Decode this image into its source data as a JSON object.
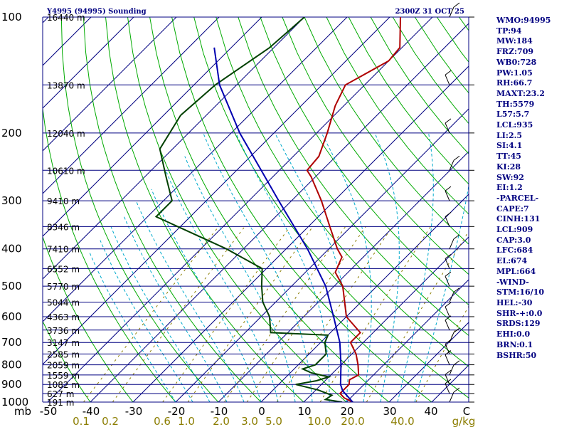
{
  "title_left": "Y4995 (94995) Sounding",
  "title_right": "2300Z 31 OCT 25",
  "pressure_labels": [
    "100",
    "200",
    "300",
    "400",
    "500",
    "600",
    "700",
    "800",
    "900",
    "1000"
  ],
  "temp_axis_labels": [
    "mb",
    "-50",
    "-40",
    "-30",
    "-20",
    "-10",
    "0",
    "10",
    "20",
    "30",
    "40",
    "C"
  ],
  "mixing_ratio_labels": [
    "0.1",
    "0.2",
    "0.6",
    "1.0",
    "2.0",
    "3.0",
    "5.0",
    "10.0",
    "20.0",
    "40.0",
    "g/kg"
  ],
  "height_labels": [
    {
      "p": 100,
      "text": "16440 m"
    },
    {
      "p": 150,
      "text": "13870 m"
    },
    {
      "p": 200,
      "text": "12040 m"
    },
    {
      "p": 250,
      "text": "10610 m"
    },
    {
      "p": 300,
      "text": "9410 m"
    },
    {
      "p": 350,
      "text": "8346 m"
    },
    {
      "p": 400,
      "text": "7410 m"
    },
    {
      "p": 450,
      "text": "6552 m"
    },
    {
      "p": 500,
      "text": "5770 m"
    },
    {
      "p": 550,
      "text": "5044 m"
    },
    {
      "p": 600,
      "text": "4363 m"
    },
    {
      "p": 650,
      "text": "3736 m"
    },
    {
      "p": 700,
      "text": "3147 m"
    },
    {
      "p": 750,
      "text": "2585 m"
    },
    {
      "p": 800,
      "text": "2059 m"
    },
    {
      "p": 850,
      "text": "1559 m"
    },
    {
      "p": 900,
      "text": "1082 m"
    },
    {
      "p": 950,
      "text": "627 m"
    },
    {
      "p": 1000,
      "text": "191 m"
    }
  ],
  "indices": [
    "WMO:94995",
    "TP:94",
    "MW:184",
    "FRZ:709",
    "WB0:728",
    "PW:1.05",
    "RH:66.7",
    "MAXT:23.2",
    "TH:5579",
    "L57:5.7",
    "LCL:935",
    "LI:2.5",
    "SI:4.1",
    "TT:45",
    "KI:28",
    "SW:92",
    "EI:1.2",
    "-PARCEL-",
    "CAPE:7",
    "CINH:131",
    "LCL:909",
    "CAP:3.0",
    "LFC:684",
    "EL:674",
    "MPL:664",
    "-WIND-",
    "STM:16/10",
    "HEL:-30",
    "SHR-+:0.0",
    "SRDS:129",
    "EHI:0.0",
    "BRN:0.1",
    "BSHR:50"
  ],
  "colors": {
    "temperature": "#b00000",
    "dewpoint": "#004000",
    "parcel": "#0000b0",
    "isobar": "#000080",
    "isotherm": "#000080",
    "dry_adiabat": "#00aa00",
    "moist_adiabat": "#00aacc",
    "mixing_ratio": "#8b7d00"
  },
  "chart_data": {
    "type": "line",
    "x_axis": "temperature",
    "x_units": "C",
    "y_axis": "pressure",
    "y_units": "mb",
    "y_scale": "log",
    "ylim": [
      1000,
      100
    ],
    "xlim": [
      -50,
      50
    ],
    "skew": true,
    "series": [
      {
        "key": "temperature",
        "points": [
          {
            "p": 1000,
            "t": 21.5
          },
          {
            "p": 975,
            "t": 18.5
          },
          {
            "p": 950,
            "t": 16.5
          },
          {
            "p": 925,
            "t": 16.5
          },
          {
            "p": 900,
            "t": 16.5
          },
          {
            "p": 875,
            "t": 15.5
          },
          {
            "p": 850,
            "t": 16.5
          },
          {
            "p": 800,
            "t": 14.0
          },
          {
            "p": 750,
            "t": 11.0
          },
          {
            "p": 700,
            "t": 7.0
          },
          {
            "p": 660,
            "t": 7.0
          },
          {
            "p": 600,
            "t": 0.0
          },
          {
            "p": 500,
            "t": -8.0
          },
          {
            "p": 460,
            "t": -13.0
          },
          {
            "p": 420,
            "t": -15.0
          },
          {
            "p": 400,
            "t": -18.0
          },
          {
            "p": 350,
            "t": -25.0
          },
          {
            "p": 300,
            "t": -33.0
          },
          {
            "p": 260,
            "t": -41.0
          },
          {
            "p": 250,
            "t": -43.5
          },
          {
            "p": 230,
            "t": -44.0
          },
          {
            "p": 200,
            "t": -47.5
          },
          {
            "p": 170,
            "t": -52.0
          },
          {
            "p": 150,
            "t": -54.5
          },
          {
            "p": 130,
            "t": -50.0
          },
          {
            "p": 120,
            "t": -50.5
          },
          {
            "p": 100,
            "t": -57.5
          }
        ]
      },
      {
        "key": "dewpoint",
        "points": [
          {
            "p": 1000,
            "t": 19.0
          },
          {
            "p": 985,
            "t": 14.5
          },
          {
            "p": 960,
            "t": 15.0
          },
          {
            "p": 930,
            "t": 10.5
          },
          {
            "p": 900,
            "t": 4.0
          },
          {
            "p": 880,
            "t": 8.0
          },
          {
            "p": 860,
            "t": 10.0
          },
          {
            "p": 840,
            "t": 5.0
          },
          {
            "p": 820,
            "t": 2.0
          },
          {
            "p": 800,
            "t": 4.0
          },
          {
            "p": 750,
            "t": 4.0
          },
          {
            "p": 700,
            "t": 1.0
          },
          {
            "p": 670,
            "t": 0.0
          },
          {
            "p": 660,
            "t": -14.0
          },
          {
            "p": 600,
            "t": -18.0
          },
          {
            "p": 550,
            "t": -23.0
          },
          {
            "p": 500,
            "t": -27.0
          },
          {
            "p": 450,
            "t": -31.0
          },
          {
            "p": 400,
            "t": -44.0
          },
          {
            "p": 330,
            "t": -68.0
          },
          {
            "p": 300,
            "t": -68.0
          },
          {
            "p": 260,
            "t": -75.0
          },
          {
            "p": 220,
            "t": -83.0
          },
          {
            "p": 180,
            "t": -86.0
          },
          {
            "p": 150,
            "t": -85.0
          },
          {
            "p": 120,
            "t": -81.0
          },
          {
            "p": 100,
            "t": -80.0
          }
        ]
      },
      {
        "key": "parcel",
        "points": [
          {
            "p": 1000,
            "t": 21.5
          },
          {
            "p": 935,
            "t": 16.5
          },
          {
            "p": 900,
            "t": 14.5
          },
          {
            "p": 800,
            "t": 10.0
          },
          {
            "p": 700,
            "t": 4.5
          },
          {
            "p": 600,
            "t": -3.0
          },
          {
            "p": 500,
            "t": -12.0
          },
          {
            "p": 400,
            "t": -25.0
          },
          {
            "p": 300,
            "t": -43.0
          },
          {
            "p": 200,
            "t": -68.0
          },
          {
            "p": 150,
            "t": -84.0
          },
          {
            "p": 120,
            "t": -94.0
          }
        ]
      }
    ]
  }
}
